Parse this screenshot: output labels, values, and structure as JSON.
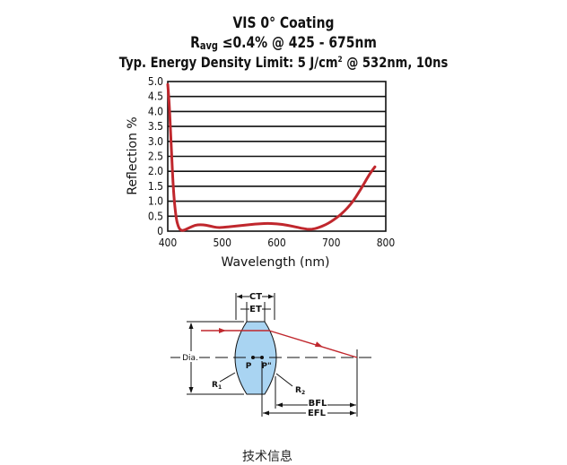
{
  "title": {
    "line1": "VIS 0° Coating",
    "line2_prefix": "R",
    "line2_sub": "avg",
    "line2_rest": " ≤0.4% @ 425 - 675nm",
    "line3_prefix": "Typ. Energy Density Limit: 5 J/cm",
    "line3_sup": "2",
    "line3_rest": " @ 532nm, 10ns"
  },
  "chart_data": {
    "type": "line",
    "xlabel": "Wavelength (nm)",
    "ylabel": "Reflection %",
    "xlim": [
      400,
      800
    ],
    "ylim": [
      0,
      5.0
    ],
    "x_ticks": [
      "400",
      "500",
      "600",
      "700",
      "800"
    ],
    "y_ticks": [
      "0",
      "0.5",
      "1.0",
      "1.5",
      "2.0",
      "2.5",
      "3.0",
      "3.5",
      "4.0",
      "4.5",
      "5.0"
    ],
    "grid": "horizontal",
    "series": [
      {
        "color": "#c0272d",
        "x": [
          400,
          403,
          406,
          410,
          415,
          420,
          425,
          430,
          440,
          450,
          460,
          470,
          480,
          490,
          500,
          520,
          540,
          560,
          580,
          600,
          620,
          640,
          650,
          660,
          670,
          680,
          690,
          700,
          710,
          720,
          730,
          740,
          750,
          760,
          770,
          780
        ],
        "y": [
          4.9,
          4.2,
          3.0,
          1.4,
          0.45,
          0.1,
          0.02,
          0.03,
          0.12,
          0.2,
          0.22,
          0.2,
          0.16,
          0.12,
          0.12,
          0.16,
          0.2,
          0.24,
          0.26,
          0.25,
          0.2,
          0.12,
          0.08,
          0.06,
          0.08,
          0.14,
          0.22,
          0.32,
          0.45,
          0.6,
          0.78,
          1.0,
          1.28,
          1.58,
          1.9,
          2.15
        ]
      }
    ]
  },
  "diagram": {
    "labels": {
      "ct": "CT",
      "et": "ET",
      "dia": "Dia.",
      "p": "P",
      "p2": "P\"",
      "r1": "R",
      "r1_sub": "1",
      "r2": "R",
      "r2_sub": "2",
      "bfl": "BFL",
      "efl": "EFL"
    },
    "lens_fill": "#a9d4f2",
    "ray_color": "#c0272d"
  },
  "footer_text": "技术信息"
}
